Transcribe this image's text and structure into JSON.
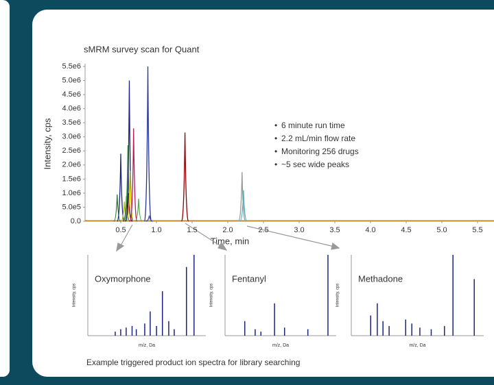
{
  "chart_data": {
    "type": "peaks",
    "title": "sMRM survey scan for Quant",
    "ylabel": "Intensity, cps",
    "xlabel": "Time, min",
    "xlim": [
      0,
      5.7
    ],
    "ylim": [
      0,
      5500000
    ],
    "xticks": [
      0.5,
      {
        "value": 1,
        "label": "1.0"
      },
      1.5,
      {
        "value": 2,
        "label": "2.0"
      },
      2.5,
      {
        "value": 3,
        "label": "3.0"
      },
      3.5,
      {
        "value": 4,
        "label": "4.0"
      },
      4.5,
      {
        "value": 5,
        "label": "5.0"
      },
      5.5
    ],
    "yticks": [
      {
        "value": 0,
        "label": "0.0"
      },
      {
        "value": 500000,
        "label": "5.0e5"
      },
      {
        "value": 1000000,
        "label": "1.0e6"
      },
      {
        "value": 1500000,
        "label": "1.5e6"
      },
      {
        "value": 2000000,
        "label": "2.0e6"
      },
      {
        "value": 2500000,
        "label": "2.5e6"
      },
      {
        "value": 3000000,
        "label": "3.0e6"
      },
      {
        "value": 3500000,
        "label": "3.5e6"
      },
      {
        "value": 4000000,
        "label": "4.0e6"
      },
      {
        "value": 4500000,
        "label": "4.5e6"
      },
      {
        "value": 5000000,
        "label": "5.0e6"
      },
      {
        "value": 5500000,
        "label": "5.5e6"
      }
    ],
    "annotations": [
      "6 minute run time",
      "2.2 mL/min flow rate",
      "Monitoring 256 drugs",
      "~5 sec wide peaks"
    ],
    "peaks": [
      {
        "x": 0.45,
        "values": 950000,
        "color": "#2e7d32"
      },
      {
        "x": 0.5,
        "values": 2400000,
        "color": "#1a237e"
      },
      {
        "x": 0.55,
        "values": 700000,
        "color": "#a5c400"
      },
      {
        "x": 0.58,
        "values": 900000,
        "color": "#6d4c41"
      },
      {
        "x": 0.6,
        "values": 2700000,
        "color": "#33aa33"
      },
      {
        "x": 0.61,
        "values": 1000000,
        "color": "#8b0000"
      },
      {
        "x": 0.62,
        "values": 5000000,
        "color": "#1a237e"
      },
      {
        "x": 0.63,
        "values": 1800000,
        "color": "#c8c800"
      },
      {
        "x": 0.68,
        "values": 3300000,
        "color": "#c2185b"
      },
      {
        "x": 0.75,
        "values": 800000,
        "color": "#4caf50"
      },
      {
        "x": 0.88,
        "values": 5500000,
        "color": "#283593"
      },
      {
        "x": 0.9,
        "values": 200000,
        "color": "#3949ab"
      },
      {
        "x": 1.4,
        "values": 3150000,
        "color": "#8b0000"
      },
      {
        "x": 2.2,
        "values": 1750000,
        "color": "#999999"
      },
      {
        "x": 2.22,
        "values": 1100000,
        "color": "#4fb3bf"
      }
    ],
    "spectra": [
      {
        "name": "Oxymorphone",
        "ylabel": "Intensity, cps",
        "xlabel": "m/z, Da",
        "xlim": [
          50,
          330
        ],
        "ylim": [
          0,
          100
        ],
        "mz": [
          115,
          128,
          141,
          155,
          165,
          185,
          198,
          213,
          227,
          242,
          255,
          284,
          302
        ],
        "values": [
          5,
          8,
          10,
          12,
          8,
          15,
          30,
          12,
          55,
          18,
          8,
          85,
          100
        ]
      },
      {
        "name": "Fentanyl",
        "ylabel": "Intensity, cps",
        "xlabel": "m/z, Da",
        "xlim": [
          50,
          360
        ],
        "ylim": [
          0,
          100
        ],
        "mz": [
          105,
          134,
          150,
          188,
          216,
          281,
          337
        ],
        "values": [
          18,
          8,
          5,
          40,
          10,
          8,
          100
        ]
      },
      {
        "name": "Methadone",
        "ylabel": "Intensity, cps",
        "xlabel": "m/z, Da",
        "xlim": [
          50,
          330
        ],
        "ylim": [
          0,
          100
        ],
        "mz": [
          91,
          105,
          117,
          130,
          165,
          178,
          195,
          219,
          247,
          265,
          310
        ],
        "values": [
          25,
          40,
          18,
          12,
          20,
          15,
          10,
          8,
          12,
          100,
          70
        ]
      }
    ],
    "footer": "Example triggered product ion spectra for library searching"
  }
}
